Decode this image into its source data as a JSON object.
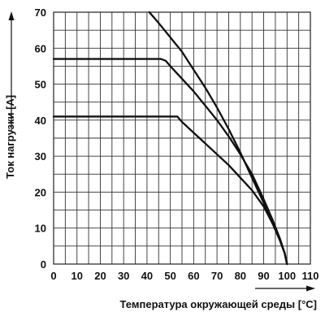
{
  "chart_data": {
    "type": "line",
    "title": "",
    "xlabel": "Температура окружающей среды [°C]",
    "ylabel": "Ток нагрузки [A]",
    "xlim": [
      0,
      110
    ],
    "ylim": [
      0,
      70
    ],
    "x_ticks": [
      "0",
      "10",
      "20",
      "30",
      "40",
      "50",
      "60",
      "70",
      "80",
      "90",
      "100",
      "110"
    ],
    "y_ticks": [
      "0",
      "10",
      "20",
      "30",
      "40",
      "50",
      "60",
      "70"
    ],
    "grid": true,
    "series": [
      {
        "x": [
          41,
          45,
          50,
          55,
          60,
          65,
          70,
          75,
          80,
          85,
          90,
          94,
          97,
          99,
          100
        ],
        "y": [
          70,
          67,
          63,
          59,
          54,
          49,
          43.5,
          37.5,
          31,
          24,
          17,
          11,
          6.5,
          3,
          0
        ]
      },
      {
        "x": [
          0,
          10,
          20,
          30,
          40,
          46,
          48,
          50,
          55,
          60,
          65,
          70,
          75,
          80,
          85,
          90,
          94,
          97,
          99,
          100
        ],
        "y": [
          57,
          57,
          57,
          57,
          57,
          57,
          56.5,
          55,
          51.5,
          48,
          44,
          40,
          35.5,
          30.5,
          25,
          18,
          12,
          7,
          3,
          0
        ]
      },
      {
        "x": [
          0,
          10,
          20,
          30,
          40,
          50,
          53,
          55,
          60,
          65,
          70,
          75,
          80,
          85,
          90,
          94,
          97,
          99,
          100
        ],
        "y": [
          41,
          41,
          41,
          41,
          41,
          41,
          41,
          39.5,
          36.5,
          33.5,
          30.5,
          27.5,
          24,
          20.5,
          16,
          11,
          6.5,
          3,
          0
        ]
      }
    ]
  }
}
